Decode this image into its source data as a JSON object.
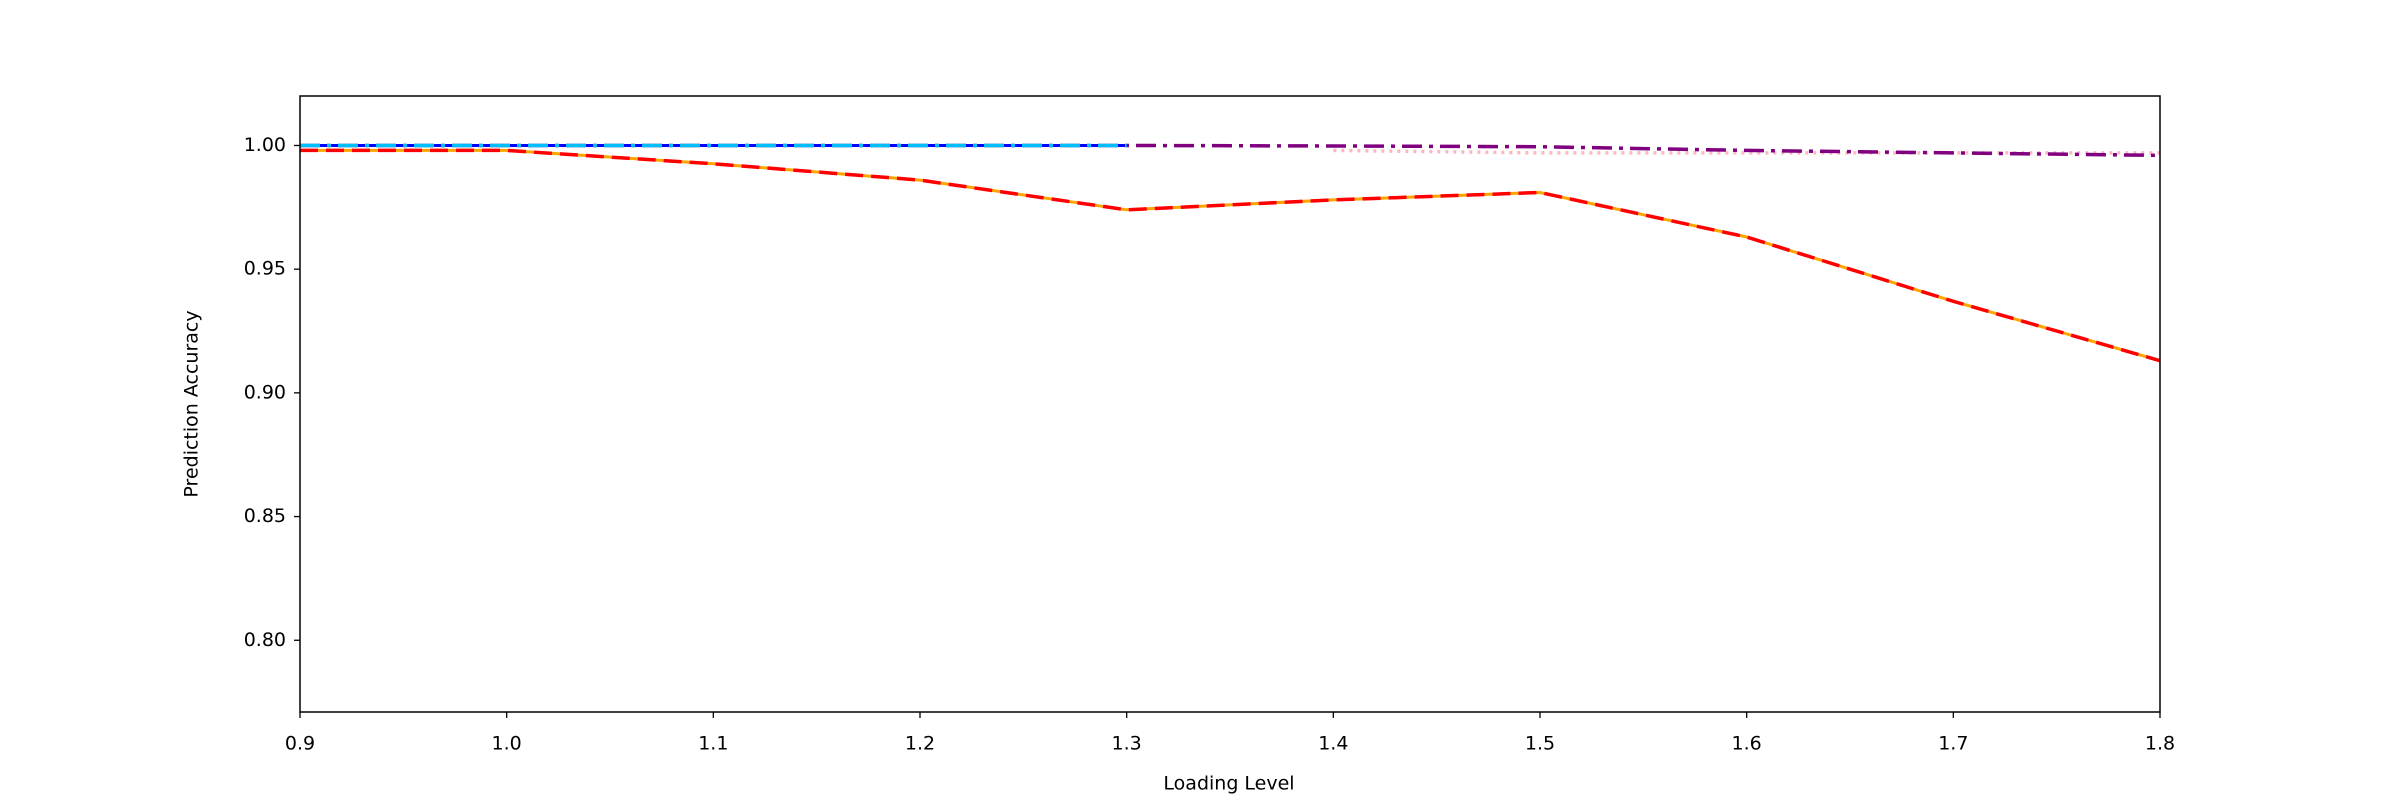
{
  "chart_data": {
    "type": "line",
    "x_label": "Loading Level",
    "y_label": "Prediction Accuracy",
    "x": [
      0.9,
      1.0,
      1.1,
      1.2,
      1.3,
      1.4,
      1.5,
      1.6,
      1.7,
      1.8
    ],
    "series": [
      {
        "color": "#ffb6c1",
        "style": "dotted",
        "values": [
          null,
          null,
          null,
          null,
          null,
          0.998,
          0.997,
          0.997,
          0.997,
          0.997
        ]
      },
      {
        "color": "#800080",
        "style": "dashdot",
        "values": [
          1.0,
          1.0,
          1.0,
          1.0,
          1.0,
          0.9998,
          0.9995,
          0.998,
          0.997,
          0.996
        ]
      },
      {
        "color": "#0000ff",
        "style": "solid",
        "values": [
          1.0,
          1.0,
          1.0,
          1.0,
          1.0,
          null,
          null,
          null,
          null,
          null
        ]
      },
      {
        "color": "#00bfff",
        "style": "dashdot",
        "values": [
          1.0,
          1.0,
          1.0,
          1.0,
          1.0,
          null,
          null,
          null,
          null,
          null
        ]
      },
      {
        "color": "#ffa500",
        "style": "solid",
        "values": [
          0.998,
          0.998,
          0.9926,
          0.986,
          0.974,
          0.978,
          0.981,
          0.963,
          0.937,
          0.913
        ]
      },
      {
        "color": "#ff0000",
        "style": "dashed",
        "values": [
          0.998,
          0.998,
          0.9926,
          0.986,
          0.974,
          0.978,
          0.981,
          0.963,
          0.937,
          0.913
        ]
      }
    ],
    "xlim": [
      0.9,
      1.8
    ],
    "xticks": [
      0.9,
      {
        "value": 1.0,
        "label": "1.0"
      },
      1.1,
      1.2,
      1.3,
      1.4,
      1.5,
      1.6,
      1.7,
      1.8
    ],
    "ylim": [
      0.771,
      1.02
    ],
    "yticks": [
      {
        "value": 0.8,
        "label": "0.80"
      },
      0.85,
      {
        "value": 0.9,
        "label": "0.90"
      },
      0.95,
      {
        "value": 1.0,
        "label": "1.00"
      }
    ],
    "grid": false
  }
}
